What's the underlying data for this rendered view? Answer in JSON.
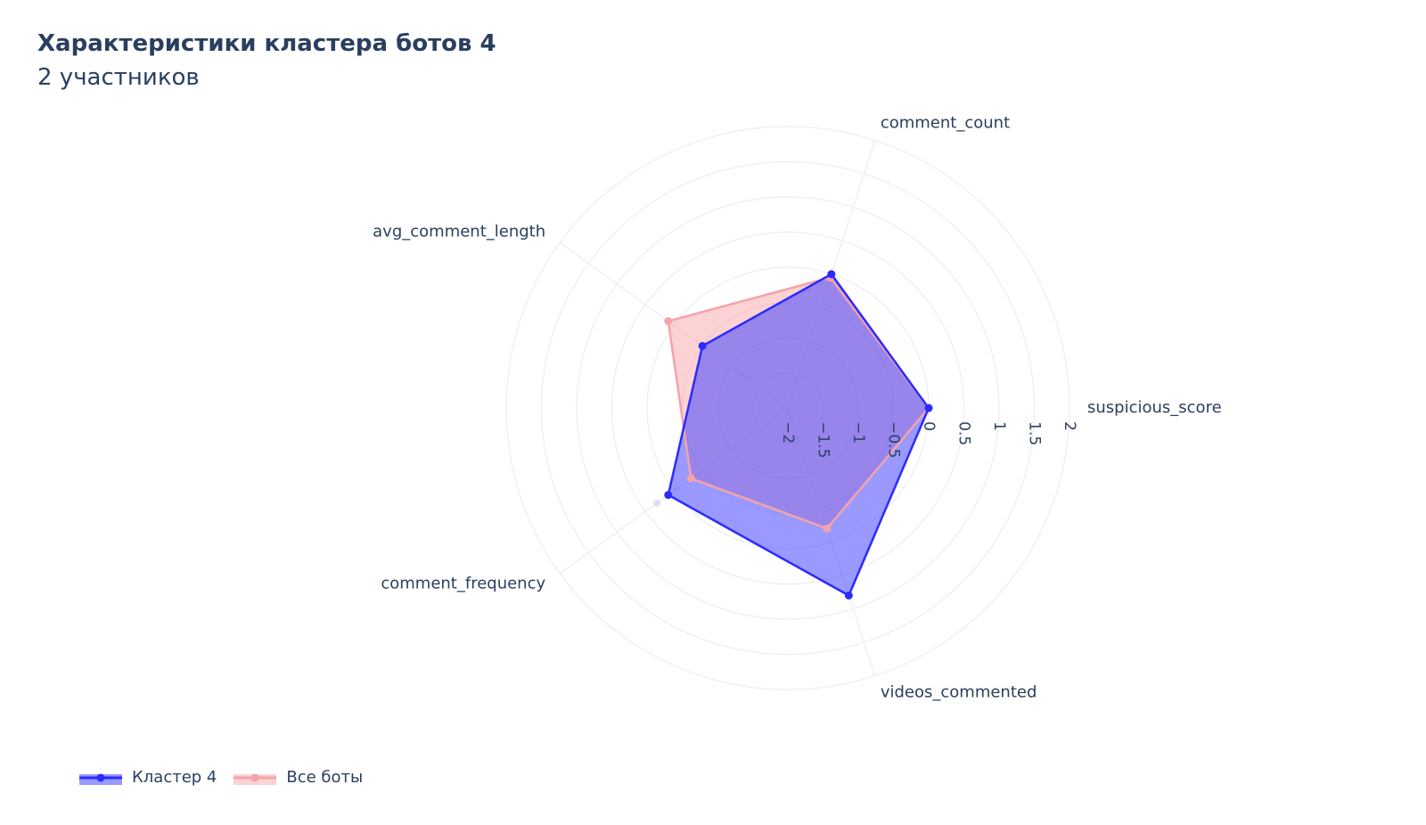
{
  "title": "Характеристики кластера ботов 4",
  "subtitle": "2 участников",
  "chart_data": {
    "type": "radar",
    "axes": [
      "suspicious_score",
      "comment_count",
      "avg_comment_length",
      "comment_frequency",
      "videos_commented"
    ],
    "radial_range": [
      -2,
      2
    ],
    "radial_ticks": [
      "−2",
      "−1.5",
      "−1",
      "−0.5",
      "0",
      "0.5",
      "1",
      "1.5",
      "2"
    ],
    "grid": true,
    "legend_position": "bottom-left",
    "series": [
      {
        "name": "Кластер 4",
        "values": [
          0.0,
          0.0,
          -0.5,
          0.1,
          0.8
        ],
        "color": "#2b2bff",
        "fill": "rgba(70,70,255,0.55)"
      },
      {
        "name": "Все боты",
        "values": [
          0.0,
          -0.05,
          0.1,
          -0.3,
          -0.2
        ],
        "color": "#f5a3a8",
        "fill": "rgba(245,150,155,0.42)"
      }
    ],
    "faint_points": [
      {
        "axis": "avg_comment_length",
        "value": -0.6
      },
      {
        "axis": "comment_frequency",
        "value": 0.3
      },
      {
        "axis": "comment_frequency",
        "value": -0.05
      }
    ]
  },
  "legend": {
    "items": [
      {
        "label": "Кластер 4",
        "color": "#2b2bff",
        "fill": "rgba(70,70,255,0.55)"
      },
      {
        "label": "Все боты",
        "color": "#f5a3a8",
        "fill": "rgba(245,150,155,0.42)"
      }
    ]
  }
}
